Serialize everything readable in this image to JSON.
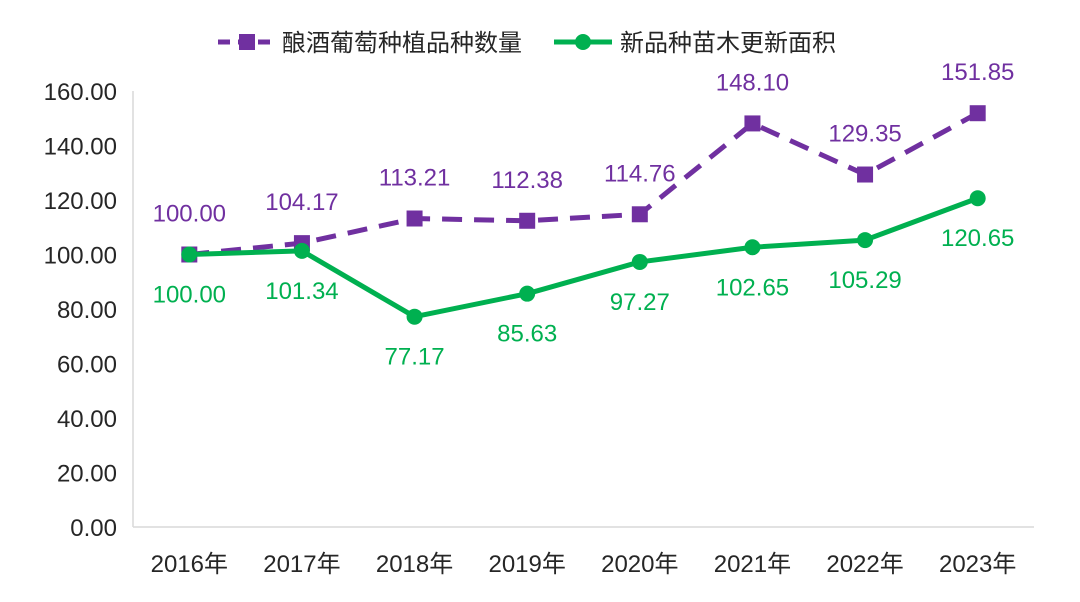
{
  "chart_data": {
    "type": "line",
    "title": "",
    "xlabel": "",
    "ylabel": "",
    "ylim": [
      0,
      160
    ],
    "y_ticks": [
      "0.00",
      "20.00",
      "40.00",
      "60.00",
      "80.00",
      "100.00",
      "120.00",
      "140.00",
      "160.00"
    ],
    "categories": [
      "2016年",
      "2017年",
      "2018年",
      "2019年",
      "2020年",
      "2021年",
      "2022年",
      "2023年"
    ],
    "legend_position": "top-center",
    "series": [
      {
        "name": "酿酒葡萄种植品种数量",
        "color": "#7030A0",
        "line_style": "dashed",
        "marker": "square",
        "label_position": "above",
        "values": [
          100.0,
          104.17,
          113.21,
          112.38,
          114.76,
          148.1,
          129.35,
          151.85
        ],
        "labels": [
          "100.00",
          "104.17",
          "113.21",
          "112.38",
          "114.76",
          "148.10",
          "129.35",
          "151.85"
        ]
      },
      {
        "name": "新品种苗木更新面积",
        "color": "#00B050",
        "line_style": "solid",
        "marker": "circle",
        "label_position": "below",
        "values": [
          100.0,
          101.34,
          77.17,
          85.63,
          97.27,
          102.65,
          105.29,
          120.65
        ],
        "labels": [
          "100.00",
          "101.34",
          "77.17",
          "85.63",
          "97.27",
          "102.65",
          "105.29",
          "120.65"
        ]
      }
    ]
  }
}
